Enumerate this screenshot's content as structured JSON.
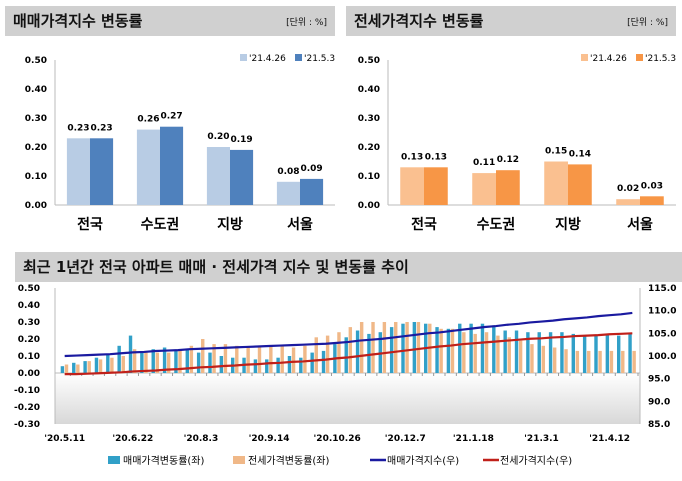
{
  "chart_data": [
    {
      "type": "bar",
      "title": "매매가격지수 변동률",
      "unit": "[단위 : %]",
      "categories": [
        "전국",
        "수도권",
        "지방",
        "서울"
      ],
      "series": [
        {
          "name": "'21.4.26",
          "values": [
            0.23,
            0.26,
            0.2,
            0.08
          ],
          "color": "#b8cce4"
        },
        {
          "name": "'21.5.3",
          "values": [
            0.23,
            0.27,
            0.19,
            0.09
          ],
          "color": "#4f81bd"
        }
      ],
      "yticks": [
        "0.00",
        "0.10",
        "0.20",
        "0.30",
        "0.40",
        "0.50"
      ],
      "ylim": [
        0,
        0.5
      ],
      "legend": "top-right"
    },
    {
      "type": "bar",
      "title": "전세가격지수 변동률",
      "unit": "[단위 : %]",
      "categories": [
        "전국",
        "수도권",
        "지방",
        "서울"
      ],
      "series": [
        {
          "name": "'21.4.26",
          "values": [
            0.13,
            0.11,
            0.15,
            0.02
          ],
          "color": "#fac090"
        },
        {
          "name": "'21.5.3",
          "values": [
            0.13,
            0.12,
            0.14,
            0.03
          ],
          "color": "#f79646"
        }
      ],
      "yticks": [
        "0.00",
        "0.10",
        "0.20",
        "0.30",
        "0.40",
        "0.50"
      ],
      "ylim": [
        0,
        0.5
      ],
      "legend": "top-right"
    },
    {
      "type": "bar+line",
      "title": "최근 1년간 전국 아파트 매매 · 전세가격 지수 및 변동률 추이",
      "xticks": [
        "'20.5.11",
        "'20.6.22",
        "'20.8.3",
        "'20.9.14",
        "'20.10.26",
        "'20.12.7",
        "'21.1.18",
        "'21.3.1",
        "'21.4.12"
      ],
      "yticks_left": [
        "-0.30",
        "-0.20",
        "-0.10",
        "0.00",
        "0.10",
        "0.20",
        "0.30",
        "0.40",
        "0.50"
      ],
      "ylim_left": [
        -0.3,
        0.5
      ],
      "yticks_right": [
        "85.0",
        "90.0",
        "95.0",
        "100.0",
        "105.0",
        "110.0",
        "115.0"
      ],
      "ylim_right": [
        85,
        115
      ],
      "series": [
        {
          "name": "매매가격변동률(좌)",
          "kind": "bar",
          "color": "#31a0c8",
          "values": [
            0.04,
            0.06,
            0.07,
            0.09,
            0.11,
            0.16,
            0.22,
            0.12,
            0.14,
            0.15,
            0.13,
            0.14,
            0.12,
            0.12,
            0.1,
            0.09,
            0.09,
            0.08,
            0.08,
            0.09,
            0.1,
            0.09,
            0.12,
            0.13,
            0.17,
            0.21,
            0.25,
            0.23,
            0.24,
            0.27,
            0.29,
            0.3,
            0.29,
            0.27,
            0.26,
            0.29,
            0.29,
            0.29,
            0.28,
            0.25,
            0.25,
            0.24,
            0.24,
            0.24,
            0.24,
            0.23,
            0.22,
            0.22,
            0.23,
            0.22,
            0.23
          ]
        },
        {
          "name": "전세가격변동률(좌)",
          "kind": "bar",
          "color": "#f0b888",
          "values": [
            0.05,
            0.05,
            0.07,
            0.08,
            0.09,
            0.1,
            0.14,
            0.12,
            0.12,
            0.12,
            0.14,
            0.16,
            0.2,
            0.17,
            0.17,
            0.16,
            0.15,
            0.15,
            0.16,
            0.16,
            0.15,
            0.16,
            0.21,
            0.22,
            0.24,
            0.27,
            0.3,
            0.3,
            0.3,
            0.3,
            0.3,
            0.3,
            0.29,
            0.26,
            0.26,
            0.24,
            0.23,
            0.24,
            0.22,
            0.21,
            0.19,
            0.17,
            0.16,
            0.15,
            0.14,
            0.13,
            0.13,
            0.13,
            0.13,
            0.13,
            0.13
          ]
        },
        {
          "name": "매매가격지수(우)",
          "kind": "line",
          "color": "#1a1aa0",
          "values": [
            100.0,
            100.1,
            100.2,
            100.3,
            100.4,
            100.6,
            100.8,
            100.9,
            101.1,
            101.2,
            101.3,
            101.5,
            101.6,
            101.7,
            101.8,
            101.9,
            102.0,
            102.1,
            102.2,
            102.3,
            102.4,
            102.5,
            102.6,
            102.7,
            102.9,
            103.1,
            103.4,
            103.6,
            103.8,
            104.1,
            104.4,
            104.7,
            105.0,
            105.2,
            105.5,
            105.8,
            106.1,
            106.4,
            106.6,
            106.9,
            107.1,
            107.4,
            107.6,
            107.8,
            108.1,
            108.3,
            108.5,
            108.8,
            109.0,
            109.2,
            109.5
          ]
        },
        {
          "name": "전세가격지수(우)",
          "kind": "line",
          "color": "#c0201a",
          "values": [
            96.0,
            96.0,
            96.1,
            96.2,
            96.3,
            96.4,
            96.6,
            96.7,
            96.8,
            97.0,
            97.1,
            97.3,
            97.5,
            97.6,
            97.8,
            97.9,
            98.1,
            98.2,
            98.4,
            98.5,
            98.7,
            98.8,
            99.0,
            99.2,
            99.5,
            99.7,
            100.0,
            100.3,
            100.6,
            100.9,
            101.2,
            101.5,
            101.8,
            102.1,
            102.3,
            102.6,
            102.8,
            103.0,
            103.2,
            103.4,
            103.6,
            103.8,
            103.9,
            104.1,
            104.2,
            104.4,
            104.5,
            104.6,
            104.8,
            104.9,
            105.0
          ]
        }
      ],
      "legend": "bottom"
    }
  ]
}
